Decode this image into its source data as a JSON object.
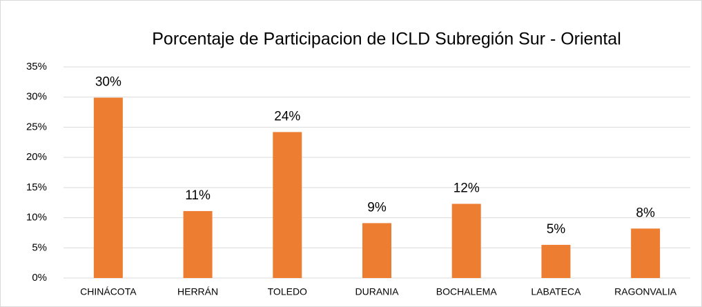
{
  "chart_data": {
    "type": "bar",
    "title": "Porcentaje de Participacion de ICLD Subregión Sur - Oriental",
    "categories": [
      "CHINÁCOTA",
      "HERRÁN",
      "TOLEDO",
      "DURANIA",
      "BOCHALEMA",
      "LABATECA",
      "RAGONVALIA"
    ],
    "values": [
      29.9,
      11.1,
      24.2,
      9.1,
      12.3,
      5.5,
      8.2
    ],
    "value_labels": [
      "30%",
      "11%",
      "24%",
      "9%",
      "12%",
      "5%",
      "8%"
    ],
    "color": "#ed7d31",
    "ylim": [
      0,
      35
    ],
    "yticks": [
      {
        "value": 0,
        "label": "0%"
      },
      {
        "value": 5,
        "label": "5%"
      },
      {
        "value": 10,
        "label": "10%"
      },
      {
        "value": 15,
        "label": "15%"
      },
      {
        "value": 20,
        "label": "20%"
      },
      {
        "value": 25,
        "label": "25%"
      },
      {
        "value": 30,
        "label": "30%"
      },
      {
        "value": 35,
        "label": "35%"
      }
    ],
    "grid": true
  }
}
